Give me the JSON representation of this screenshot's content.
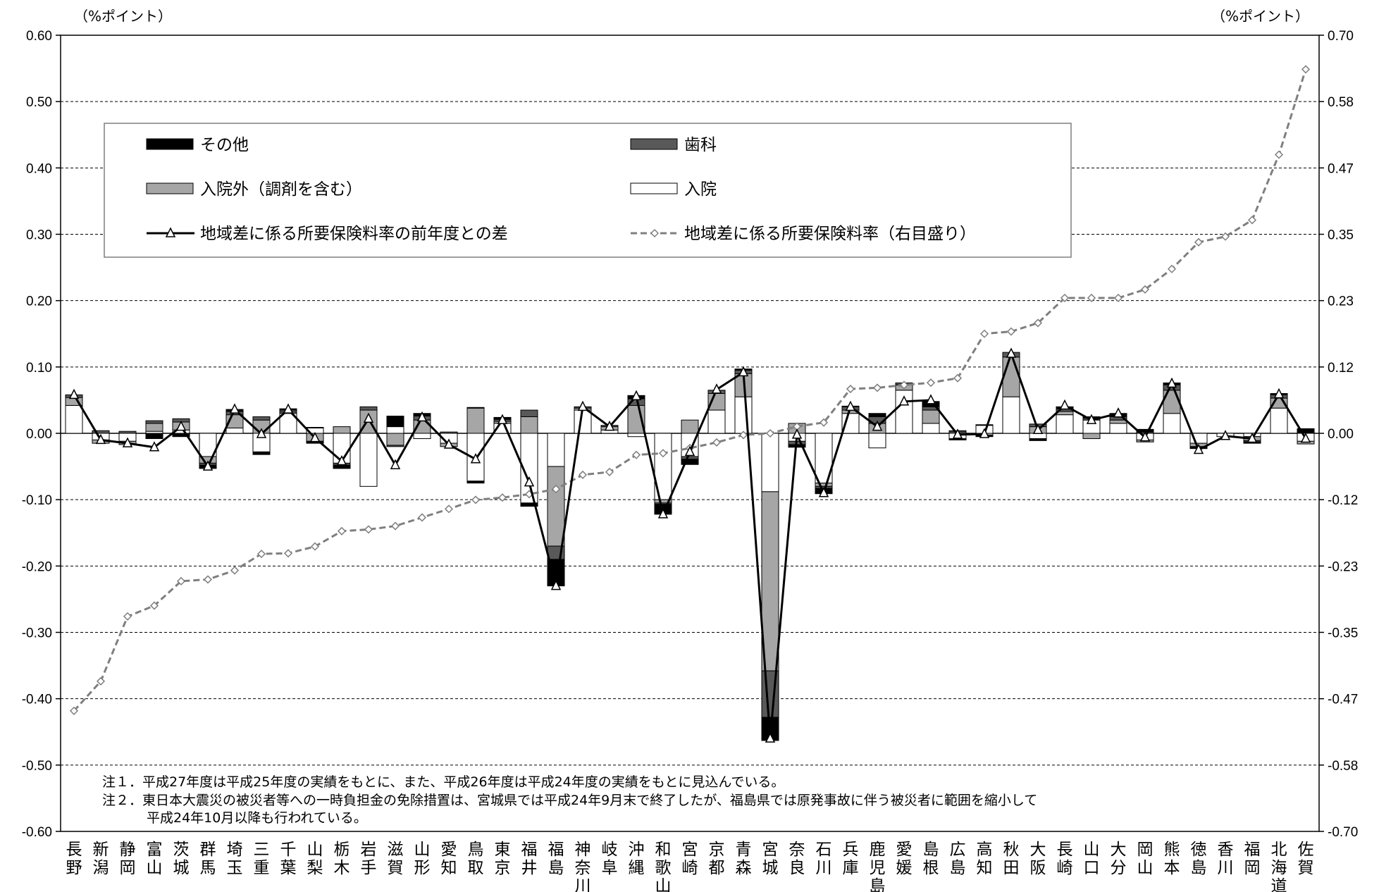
{
  "chart_data": {
    "type": "bar",
    "left_axis_unit": "（%ポイント）",
    "right_axis_unit": "（%ポイント）",
    "left_ylim": [
      -0.6,
      0.6
    ],
    "left_ticks": [
      "0.60",
      "0.50",
      "0.40",
      "0.30",
      "0.20",
      "0.10",
      "0.00",
      "-0.10",
      "-0.20",
      "-0.30",
      "-0.40",
      "-0.50",
      "-0.60"
    ],
    "right_ylim": [
      -0.7,
      0.7
    ],
    "right_ticks": [
      "0.70",
      "0.58",
      "0.47",
      "0.35",
      "0.23",
      "0.12",
      "0.00",
      "-0.12",
      "-0.23",
      "-0.35",
      "-0.47",
      "-0.58",
      "-0.70"
    ],
    "grid": true,
    "legend_position": "top-left",
    "categories": [
      "長野",
      "新潟",
      "静岡",
      "富山",
      "茨城",
      "群馬",
      "埼玉",
      "三重",
      "千葉",
      "山梨",
      "栃木",
      "岩手",
      "滋賀",
      "山形",
      "愛知",
      "鳥取",
      "東京",
      "福井",
      "福島",
      "神奈川",
      "岐阜",
      "沖縄",
      "和歌山",
      "宮崎",
      "京都",
      "青森",
      "宮城",
      "奈良",
      "石川",
      "兵庫",
      "鹿児島",
      "愛媛",
      "島根",
      "広島",
      "高知",
      "秋田",
      "大阪",
      "長崎",
      "山口",
      "大分",
      "岡山",
      "熊本",
      "徳島",
      "香川",
      "福岡",
      "北海道",
      "佐賀"
    ],
    "series": [
      {
        "name": "入院",
        "kind": "stacked-bar",
        "color": "#ffffff",
        "values": [
          0.042,
          -0.01,
          -0.012,
          0.003,
          0.005,
          -0.035,
          0.008,
          -0.028,
          0.03,
          0.008,
          -0.045,
          -0.08,
          0.01,
          -0.008,
          -0.015,
          -0.072,
          0.015,
          -0.105,
          -0.05,
          0.035,
          0.005,
          -0.005,
          -0.1,
          -0.035,
          0.035,
          0.055,
          -0.088,
          -0.012,
          -0.075,
          0.03,
          -0.022,
          0.065,
          0.015,
          -0.008,
          0.012,
          0.055,
          -0.008,
          0.028,
          0.02,
          0.015,
          -0.01,
          0.03,
          -0.015,
          -0.005,
          -0.005,
          0.038,
          -0.012
        ]
      },
      {
        "name": "入院外（調剤を含む）",
        "kind": "stacked-bar",
        "color": "#a6a6a6",
        "values": [
          0.012,
          -0.005,
          -0.005,
          0.012,
          0.012,
          -0.01,
          0.02,
          0.02,
          0.002,
          -0.012,
          0.01,
          0.035,
          -0.018,
          0.02,
          -0.005,
          0.038,
          0.003,
          0.025,
          -0.12,
          0.003,
          0.005,
          0.042,
          -0.005,
          0.02,
          0.025,
          0.035,
          -0.27,
          0.015,
          -0.005,
          0.005,
          0.015,
          0.008,
          0.02,
          0.002,
          -0.003,
          0.06,
          0.01,
          0.005,
          -0.008,
          0.005,
          -0.003,
          0.035,
          -0.005,
          0.0,
          -0.006,
          0.015,
          -0.004
        ]
      },
      {
        "name": "歯科",
        "kind": "stacked-bar",
        "color": "#595959",
        "values": [
          0.004,
          0.004,
          0.003,
          0.004,
          0.005,
          -0.003,
          0.005,
          0.005,
          0.003,
          0.001,
          -0.003,
          0.005,
          -0.002,
          0.006,
          0.002,
          0.001,
          0.003,
          0.01,
          -0.02,
          0.002,
          0.002,
          0.01,
          -0.002,
          -0.004,
          0.005,
          0.005,
          -0.07,
          -0.005,
          -0.003,
          0.005,
          0.01,
          0.003,
          0.005,
          0.002,
          0.001,
          0.007,
          0.004,
          0.004,
          0.003,
          0.005,
          0.002,
          0.008,
          0.0,
          0.0,
          -0.002,
          0.005,
          0.001
        ]
      },
      {
        "name": "その他",
        "kind": "stacked-bar",
        "color": "#000000",
        "values": [
          0.0,
          0.0,
          0.0,
          -0.008,
          -0.005,
          -0.005,
          0.003,
          -0.004,
          0.002,
          -0.003,
          -0.005,
          0.0,
          0.016,
          0.004,
          0.0,
          -0.003,
          0.003,
          -0.005,
          -0.04,
          0.0,
          0.0,
          0.005,
          -0.015,
          -0.008,
          0.0,
          0.002,
          -0.035,
          -0.004,
          -0.008,
          0.001,
          0.005,
          0.0,
          0.008,
          -0.002,
          -0.002,
          0.0,
          -0.003,
          0.003,
          0.002,
          0.005,
          0.004,
          0.003,
          -0.003,
          0.0,
          -0.002,
          0.002,
          0.006
        ]
      },
      {
        "name": "地域差に係る所要保険料率の前年度との差",
        "kind": "line",
        "axis": "left",
        "color": "#000000",
        "marker": "triangle",
        "values": [
          0.058,
          -0.01,
          -0.015,
          -0.021,
          0.01,
          -0.05,
          0.036,
          -0.001,
          0.036,
          -0.007,
          -0.042,
          0.022,
          -0.048,
          0.024,
          -0.017,
          -0.039,
          0.02,
          -0.074,
          -0.23,
          0.04,
          0.01,
          0.056,
          -0.122,
          -0.028,
          0.066,
          0.092,
          -0.46,
          -0.002,
          -0.09,
          0.04,
          0.01,
          0.048,
          0.05,
          -0.002,
          -0.001,
          0.12,
          0.005,
          0.042,
          0.02,
          0.03,
          -0.006,
          0.075,
          -0.025,
          -0.004,
          -0.008,
          0.059,
          -0.008
        ]
      },
      {
        "name": "地域差に係る所要保険料率（右目盛り）",
        "kind": "line",
        "axis": "right",
        "color": "#7f7f7f",
        "marker": "diamond",
        "dashed": true,
        "values": [
          -0.488,
          -0.436,
          -0.322,
          -0.303,
          -0.26,
          -0.257,
          -0.241,
          -0.212,
          -0.211,
          -0.199,
          -0.172,
          -0.169,
          -0.163,
          -0.148,
          -0.133,
          -0.117,
          -0.113,
          -0.107,
          -0.098,
          -0.073,
          -0.068,
          -0.038,
          -0.035,
          -0.026,
          -0.016,
          -0.003,
          0.0,
          0.012,
          0.019,
          0.078,
          0.08,
          0.085,
          0.089,
          0.097,
          0.175,
          0.179,
          0.194,
          0.238,
          0.238,
          0.238,
          0.253,
          0.289,
          0.336,
          0.346,
          0.375,
          0.49,
          0.64
        ]
      }
    ],
    "notes": [
      "注１．平成27年度は平成25年度の実績をもとに、また、平成26年度は平成24年度の実績をもとに見込んでいる。",
      "注２．東日本大震災の被災者等への一時負担金の免除措置は、宮城県では平成24年9月末で終了したが、福島県では原発事故に伴う被災者に範囲を縮小して",
      "平成24年10月以降も行われている。"
    ]
  }
}
